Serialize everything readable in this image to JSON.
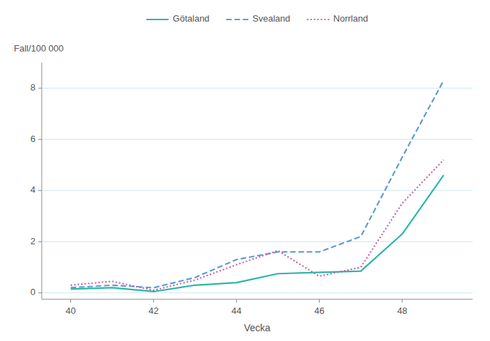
{
  "chart_data": {
    "type": "line",
    "x": [
      40,
      41,
      42,
      43,
      44,
      45,
      46,
      47,
      48,
      49
    ],
    "x_label": "Vecka",
    "y_label": "Fall/100 000",
    "series": [
      {
        "name": "Götaland",
        "color": "#2ab5a5",
        "line_style": "solid",
        "values": [
          0.15,
          0.2,
          0.05,
          0.3,
          0.4,
          0.75,
          0.8,
          0.85,
          2.3,
          4.6
        ]
      },
      {
        "name": "Svealand",
        "color": "#5b9bd5",
        "line_style": "dashed",
        "values": [
          0.2,
          0.3,
          0.2,
          0.6,
          1.3,
          1.6,
          1.6,
          2.2,
          5.3,
          8.3
        ]
      },
      {
        "name": "Norrland",
        "color": "#c060a0",
        "line_style": "dotted",
        "values": [
          0.3,
          0.45,
          0.1,
          0.5,
          1.1,
          1.65,
          0.65,
          1.0,
          3.5,
          5.2
        ]
      }
    ],
    "xlim": [
      39.3,
      49.7
    ],
    "xticks": [
      40,
      42,
      44,
      46,
      48
    ],
    "ylim": [
      -0.25,
      9.0
    ],
    "yticks": [
      0,
      2,
      4,
      6,
      8
    ],
    "grid": true,
    "legend": "top"
  }
}
